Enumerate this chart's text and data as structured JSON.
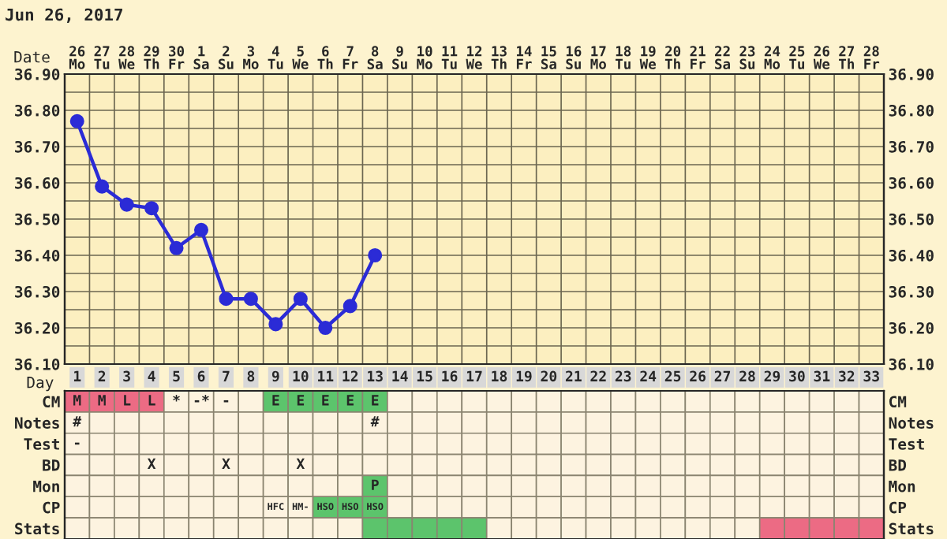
{
  "chart_data": [
    {
      "type": "line",
      "title": "Jun 26, 2017",
      "xlabel": "Date",
      "categories": [
        "26\nMo",
        "27\nTu",
        "28\nWe",
        "29\nTh",
        "30\nFr",
        "1\nSa",
        "2\nSu",
        "3\nMo",
        "4\nTu",
        "5\nWe",
        "6\nTh",
        "7\nFr",
        "8\nSa",
        "9\nSu",
        "10\nMo",
        "11\nTu",
        "12\nWe",
        "13\nTh",
        "14\nFr",
        "15\nSa",
        "16\nSu",
        "17\nMo",
        "18\nTu",
        "19\nWe",
        "20\nTh",
        "21\nFr",
        "22\nSa",
        "23\nSu",
        "24\nMo",
        "25\nTu",
        "26\nWe",
        "27\nTh",
        "28\nFr"
      ],
      "series": [
        {
          "color": "#2b2bd6",
          "values": [
            36.77,
            36.59,
            36.54,
            36.53,
            36.42,
            36.47,
            36.28,
            36.28,
            36.21,
            36.28,
            36.2,
            36.26,
            36.4,
            null,
            null,
            null,
            null,
            null,
            null,
            null,
            null,
            null,
            null,
            null,
            null,
            null,
            null,
            null,
            null,
            null,
            null,
            null,
            null
          ]
        }
      ],
      "ylim": [
        36.1,
        36.9
      ],
      "yticks": [
        {
          "value": 36.1,
          "label": "36.10"
        },
        {
          "value": 36.15,
          "label": null
        },
        {
          "value": 36.2,
          "label": "36.20"
        },
        {
          "value": 36.25,
          "label": null
        },
        {
          "value": 36.3,
          "label": "36.30"
        },
        {
          "value": 36.35,
          "label": null
        },
        {
          "value": 36.4,
          "label": "36.40"
        },
        {
          "value": 36.45,
          "label": null
        },
        {
          "value": 36.5,
          "label": "36.50"
        },
        {
          "value": 36.55,
          "label": null
        },
        {
          "value": 36.6,
          "label": "36.60"
        },
        {
          "value": 36.65,
          "label": null
        },
        {
          "value": 36.7,
          "label": "36.70"
        },
        {
          "value": 36.75,
          "label": null
        },
        {
          "value": 36.8,
          "label": "36.80"
        },
        {
          "value": 36.85,
          "label": null
        },
        {
          "value": 36.9,
          "label": "36.90"
        }
      ],
      "y2lim": [
        36.1,
        36.9
      ],
      "y2ticks": [
        {
          "value": 36.1,
          "label": "36.10"
        },
        {
          "value": 36.2,
          "label": "36.20"
        },
        {
          "value": 36.3,
          "label": "36.30"
        },
        {
          "value": 36.4,
          "label": "36.40"
        },
        {
          "value": 36.5,
          "label": "36.50"
        },
        {
          "value": 36.6,
          "label": "36.60"
        },
        {
          "value": 36.7,
          "label": "36.70"
        },
        {
          "value": 36.8,
          "label": "36.80"
        },
        {
          "value": 36.9,
          "label": "36.90"
        }
      ],
      "grid": true,
      "marker": "circle",
      "line_style": "solid",
      "legend": false
    },
    {
      "type": "heatmap",
      "xlabel": "Day",
      "categories": [
        "1",
        "2",
        "3",
        "4",
        "5",
        "6",
        "7",
        "8",
        "9",
        "10",
        "11",
        "12",
        "13",
        "14",
        "15",
        "16",
        "17",
        "18",
        "19",
        "20",
        "21",
        "22",
        "23",
        "24",
        "25",
        "26",
        "27",
        "28",
        "29",
        "30",
        "31",
        "32",
        "33"
      ],
      "y_categories": [
        "CM",
        "Notes",
        "Test",
        "BD",
        "Mon",
        "CP",
        "Stats"
      ],
      "y2_categories": [
        "CM",
        "Notes",
        "Test",
        "BD",
        "Mon",
        "CP",
        "Stats"
      ],
      "cells": [
        [
          null,
          null,
          null,
          null,
          null,
          null,
          null,
          null,
          null,
          null,
          null,
          null,
          null,
          null,
          null,
          null,
          null,
          null,
          null,
          null,
          null,
          null,
          null,
          null,
          null,
          null,
          null,
          null,
          null,
          null,
          null,
          null,
          null
        ],
        [
          null,
          null,
          null,
          null,
          null,
          null,
          null,
          null,
          null,
          null,
          null,
          null,
          null,
          null,
          null,
          null,
          null,
          null,
          null,
          null,
          null,
          null,
          null,
          null,
          null,
          null,
          null,
          null,
          null,
          null,
          null,
          null,
          null
        ],
        [
          null,
          null,
          null,
          null,
          null,
          null,
          null,
          null,
          null,
          null,
          null,
          null,
          null,
          null,
          null,
          null,
          null,
          null,
          null,
          null,
          null,
          null,
          null,
          null,
          null,
          null,
          null,
          null,
          null,
          null,
          null,
          null,
          null
        ],
        [
          null,
          null,
          null,
          null,
          null,
          null,
          null,
          null,
          null,
          null,
          null,
          null,
          null,
          null,
          null,
          null,
          null,
          null,
          null,
          null,
          null,
          null,
          null,
          null,
          null,
          null,
          null,
          null,
          null,
          null,
          null,
          null,
          null
        ],
        [
          null,
          null,
          null,
          null,
          null,
          null,
          null,
          null,
          null,
          null,
          null,
          null,
          null,
          null,
          null,
          null,
          null,
          null,
          null,
          null,
          null,
          null,
          null,
          null,
          null,
          null,
          null,
          null,
          null,
          null,
          null,
          null,
          null
        ],
        [
          null,
          null,
          null,
          null,
          null,
          null,
          null,
          null,
          null,
          null,
          null,
          null,
          null,
          null,
          null,
          null,
          null,
          null,
          null,
          null,
          null,
          null,
          null,
          null,
          null,
          null,
          null,
          null,
          null,
          null,
          null,
          null,
          null
        ],
        [
          null,
          null,
          null,
          null,
          null,
          null,
          null,
          null,
          null,
          null,
          null,
          null,
          null,
          null,
          null,
          null,
          null,
          null,
          null,
          null,
          null,
          null,
          null,
          null,
          null,
          null,
          null,
          null,
          null,
          null,
          null,
          null,
          null
        ]
      ],
      "cell_labels": [
        [
          "M",
          "M",
          "L",
          "L",
          "*",
          "-*",
          "-",
          null,
          "E",
          "E",
          "E",
          "E",
          "E",
          null,
          null,
          null,
          null,
          null,
          null,
          null,
          null,
          null,
          null,
          null,
          null,
          null,
          null,
          null,
          null,
          null,
          null,
          null,
          null
        ],
        [
          "#",
          null,
          null,
          null,
          null,
          null,
          null,
          null,
          null,
          null,
          null,
          null,
          "#",
          null,
          null,
          null,
          null,
          null,
          null,
          null,
          null,
          null,
          null,
          null,
          null,
          null,
          null,
          null,
          null,
          null,
          null,
          null,
          null
        ],
        [
          "-",
          null,
          null,
          null,
          null,
          null,
          null,
          null,
          null,
          null,
          null,
          null,
          null,
          null,
          null,
          null,
          null,
          null,
          null,
          null,
          null,
          null,
          null,
          null,
          null,
          null,
          null,
          null,
          null,
          null,
          null,
          null,
          null
        ],
        [
          null,
          null,
          null,
          "X",
          null,
          null,
          "X",
          null,
          null,
          "X",
          null,
          null,
          null,
          null,
          null,
          null,
          null,
          null,
          null,
          null,
          null,
          null,
          null,
          null,
          null,
          null,
          null,
          null,
          null,
          null,
          null,
          null,
          null
        ],
        [
          null,
          null,
          null,
          null,
          null,
          null,
          null,
          null,
          null,
          null,
          null,
          null,
          "P",
          null,
          null,
          null,
          null,
          null,
          null,
          null,
          null,
          null,
          null,
          null,
          null,
          null,
          null,
          null,
          null,
          null,
          null,
          null,
          null
        ],
        [
          null,
          null,
          null,
          null,
          null,
          null,
          null,
          null,
          "HFC",
          "HM-",
          "HSO",
          "HSO",
          "HSO",
          null,
          null,
          null,
          null,
          null,
          null,
          null,
          null,
          null,
          null,
          null,
          null,
          null,
          null,
          null,
          null,
          null,
          null,
          null,
          null
        ],
        [
          null,
          null,
          null,
          null,
          null,
          null,
          null,
          null,
          null,
          null,
          null,
          null,
          null,
          null,
          null,
          null,
          null,
          null,
          null,
          null,
          null,
          null,
          null,
          null,
          null,
          null,
          null,
          null,
          null,
          null,
          null,
          null,
          null
        ]
      ],
      "colors": [
        [
          "#ec6b84",
          "#ec6b84",
          "#ec6b84",
          "#ec6b84",
          null,
          null,
          null,
          null,
          "#5cc46c",
          "#5cc46c",
          "#5cc46c",
          "#5cc46c",
          "#5cc46c",
          null,
          null,
          null,
          null,
          null,
          null,
          null,
          null,
          null,
          null,
          null,
          null,
          null,
          null,
          null,
          null,
          null,
          null,
          null,
          null
        ],
        [
          null,
          null,
          null,
          null,
          null,
          null,
          null,
          null,
          null,
          null,
          null,
          null,
          null,
          null,
          null,
          null,
          null,
          null,
          null,
          null,
          null,
          null,
          null,
          null,
          null,
          null,
          null,
          null,
          null,
          null,
          null,
          null,
          null
        ],
        [
          null,
          null,
          null,
          null,
          null,
          null,
          null,
          null,
          null,
          null,
          null,
          null,
          null,
          null,
          null,
          null,
          null,
          null,
          null,
          null,
          null,
          null,
          null,
          null,
          null,
          null,
          null,
          null,
          null,
          null,
          null,
          null,
          null
        ],
        [
          null,
          null,
          null,
          null,
          null,
          null,
          null,
          null,
          null,
          null,
          null,
          null,
          null,
          null,
          null,
          null,
          null,
          null,
          null,
          null,
          null,
          null,
          null,
          null,
          null,
          null,
          null,
          null,
          null,
          null,
          null,
          null,
          null
        ],
        [
          null,
          null,
          null,
          null,
          null,
          null,
          null,
          null,
          null,
          null,
          null,
          null,
          "#5cc46c",
          null,
          null,
          null,
          null,
          null,
          null,
          null,
          null,
          null,
          null,
          null,
          null,
          null,
          null,
          null,
          null,
          null,
          null,
          null,
          null
        ],
        [
          null,
          null,
          null,
          null,
          null,
          null,
          null,
          null,
          null,
          null,
          "#5cc46c",
          "#5cc46c",
          "#5cc46c",
          null,
          null,
          null,
          null,
          null,
          null,
          null,
          null,
          null,
          null,
          null,
          null,
          null,
          null,
          null,
          null,
          null,
          null,
          null,
          null
        ],
        [
          null,
          null,
          null,
          null,
          null,
          null,
          null,
          null,
          null,
          null,
          null,
          null,
          "#5cc46c",
          "#5cc46c",
          "#5cc46c",
          "#5cc46c",
          "#5cc46c",
          null,
          null,
          null,
          null,
          null,
          null,
          null,
          null,
          null,
          null,
          null,
          "#ec6b84",
          "#ec6b84",
          "#ec6b84",
          "#ec6b84",
          "#ec6b84"
        ]
      ]
    }
  ]
}
